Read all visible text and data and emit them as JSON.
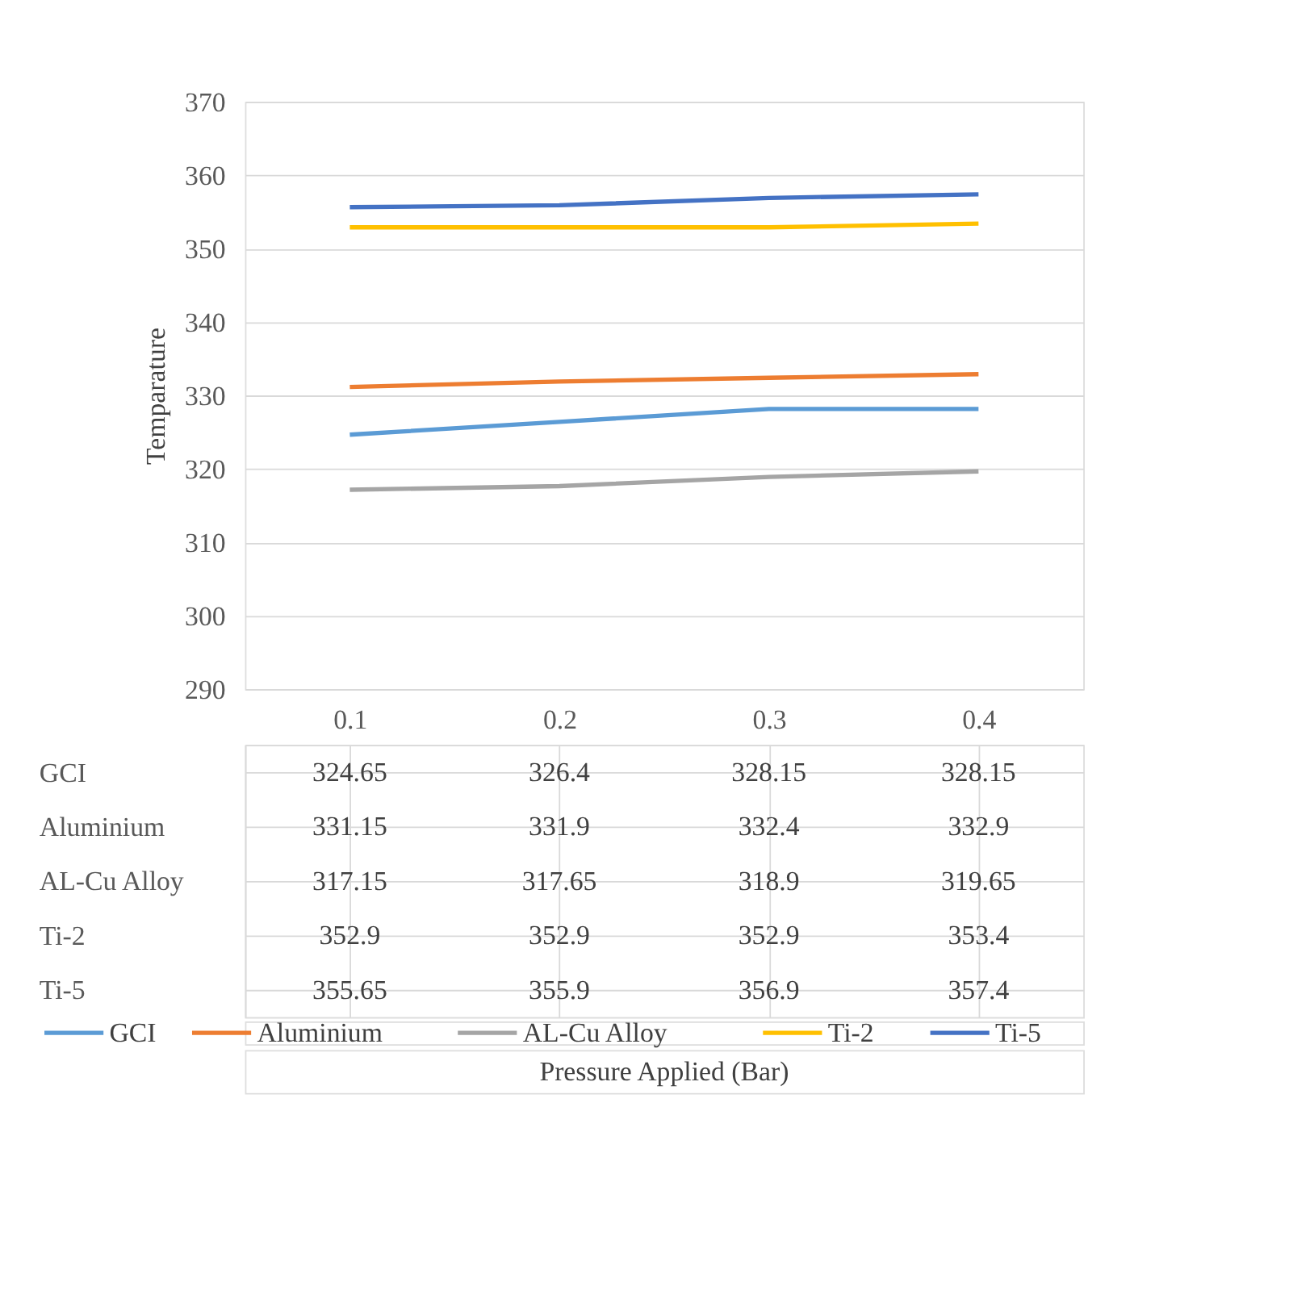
{
  "chart_data": {
    "type": "line",
    "annotations": [
      "Pressure Applied (Bar)"
    ],
    "ylabel": "Temparature",
    "categories": [
      "0.1",
      "0.2",
      "0.3",
      "0.4"
    ],
    "series": [
      {
        "name": "GCI",
        "color": "#5b9bd5",
        "values": [
          324.65,
          326.4,
          328.15,
          328.15
        ]
      },
      {
        "name": "Aluminium",
        "color": "#ed7d31",
        "values": [
          331.15,
          331.9,
          332.4,
          332.9
        ]
      },
      {
        "name": "AL-Cu Alloy",
        "color": "#a5a5a5",
        "values": [
          317.15,
          317.65,
          318.9,
          319.65
        ]
      },
      {
        "name": "Ti-2",
        "color": "#ffc000",
        "values": [
          352.9,
          352.9,
          352.9,
          353.4
        ]
      },
      {
        "name": "Ti-5",
        "color": "#4472c4",
        "values": [
          355.65,
          355.9,
          356.9,
          357.4
        ]
      }
    ],
    "ylim": [
      290,
      370
    ],
    "yticks": [
      290,
      300,
      310,
      320,
      330,
      340,
      350,
      360,
      370
    ],
    "grid": "y",
    "data_labels": true,
    "legend": "bottom",
    "marker": "none",
    "line_style": "solid"
  }
}
